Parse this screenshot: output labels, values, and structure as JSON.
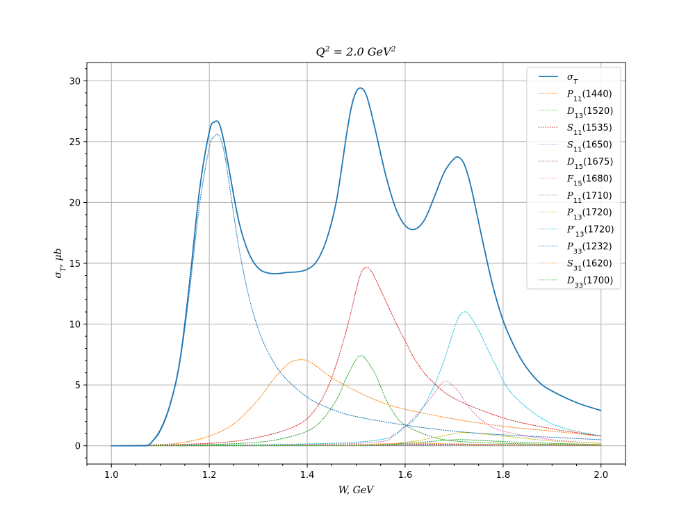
{
  "chart_data": {
    "type": "line",
    "title": "Q² = 2.0 GeV²",
    "xlabel": "W, GeV",
    "ylabel": "σ_T, μb",
    "xlim": [
      0.95,
      2.05
    ],
    "ylim": [
      -1.5,
      31.5
    ],
    "xticks": [
      "1.0",
      "1.2",
      "1.4",
      "1.6",
      "1.8",
      "2.0"
    ],
    "yticks": [
      "0",
      "5",
      "10",
      "15",
      "20",
      "25",
      "30"
    ],
    "grid": true,
    "legend_position": "top-right",
    "series": [
      {
        "name": "σ_T",
        "label_main": "σ",
        "label_sub": "T",
        "color": "#1f77b4",
        "style": "solid",
        "x": [
          1.0,
          1.02,
          1.04,
          1.06,
          1.07,
          1.08,
          1.1,
          1.12,
          1.14,
          1.16,
          1.18,
          1.2,
          1.21,
          1.22,
          1.23,
          1.24,
          1.26,
          1.28,
          1.3,
          1.32,
          1.34,
          1.36,
          1.38,
          1.4,
          1.42,
          1.44,
          1.46,
          1.48,
          1.49,
          1.5,
          1.51,
          1.52,
          1.53,
          1.54,
          1.56,
          1.58,
          1.6,
          1.62,
          1.64,
          1.66,
          1.68,
          1.7,
          1.71,
          1.72,
          1.73,
          1.74,
          1.76,
          1.78,
          1.8,
          1.82,
          1.84,
          1.86,
          1.88,
          1.9,
          1.93,
          1.96,
          2.0
        ],
        "y": [
          0,
          0,
          0,
          0,
          0,
          0.2,
          1.3,
          3.4,
          7,
          13.5,
          21,
          25.8,
          26.6,
          26.5,
          25,
          22.8,
          18.5,
          15.9,
          14.6,
          14.2,
          14.15,
          14.25,
          14.3,
          14.5,
          15.2,
          17,
          20.2,
          25.5,
          27.8,
          29.1,
          29.4,
          28.9,
          27.5,
          25.8,
          22.3,
          19.6,
          18.1,
          17.8,
          18.6,
          20.5,
          22.5,
          23.6,
          23.7,
          23.2,
          22,
          20.3,
          16.5,
          13,
          10.3,
          8.4,
          6.9,
          5.8,
          5,
          4.5,
          3.9,
          3.4,
          2.9
        ]
      },
      {
        "name": "P11(1440)",
        "label_main": "P",
        "label_sub": "11",
        "label_tail": "(1440)",
        "color": "#ff7f0e",
        "style": "dotted",
        "x": [
          1.0,
          1.1,
          1.15,
          1.2,
          1.25,
          1.3,
          1.33,
          1.36,
          1.38,
          1.4,
          1.42,
          1.45,
          1.5,
          1.55,
          1.6,
          1.7,
          1.8,
          1.9,
          2.0
        ],
        "y": [
          0,
          0.1,
          0.3,
          0.8,
          1.8,
          3.8,
          5.4,
          6.7,
          7.05,
          7,
          6.5,
          5.6,
          4.5,
          3.6,
          3,
          2.2,
          1.6,
          1.2,
          0.8
        ]
      },
      {
        "name": "D13(1520)",
        "label_main": "D",
        "label_sub": "13",
        "label_tail": "(1520)",
        "color": "#2ca02c",
        "style": "dotted",
        "x": [
          1.0,
          1.2,
          1.3,
          1.35,
          1.4,
          1.43,
          1.46,
          1.48,
          1.5,
          1.51,
          1.52,
          1.54,
          1.56,
          1.58,
          1.6,
          1.65,
          1.7,
          1.8,
          2.0
        ],
        "y": [
          0,
          0.1,
          0.3,
          0.6,
          1.2,
          2.1,
          3.8,
          5.6,
          7.1,
          7.4,
          7.1,
          5.8,
          3.9,
          2.5,
          1.7,
          0.8,
          0.4,
          0.2,
          0.05
        ]
      },
      {
        "name": "S11(1535)",
        "label_main": "S",
        "label_sub": "11",
        "label_tail": "(1535)",
        "color": "#d62728",
        "style": "dotted",
        "x": [
          1.0,
          1.2,
          1.3,
          1.38,
          1.42,
          1.45,
          1.48,
          1.5,
          1.51,
          1.52,
          1.53,
          1.55,
          1.58,
          1.6,
          1.62,
          1.65,
          1.7,
          1.8,
          1.9,
          2.0
        ],
        "y": [
          0,
          0.2,
          0.7,
          1.7,
          3.2,
          5.6,
          9.5,
          12.8,
          14.2,
          14.65,
          14.4,
          12.8,
          10.2,
          8.6,
          7.1,
          5.5,
          3.9,
          2.3,
          1.4,
          0.8
        ]
      },
      {
        "name": "S11(1650)",
        "label_main": "S",
        "label_sub": "11",
        "label_tail": "(1650)",
        "color": "#9467bd",
        "style": "dotted",
        "x": [
          1.0,
          1.5,
          1.6,
          1.65,
          1.7,
          1.8,
          2.0
        ],
        "y": [
          0,
          0.05,
          0.1,
          0.15,
          0.15,
          0.1,
          0.05
        ]
      },
      {
        "name": "D15(1675)",
        "label_main": "D",
        "label_sub": "15",
        "label_tail": "(1675)",
        "color": "#8c564b",
        "style": "dotted",
        "x": [
          1.0,
          1.5,
          1.6,
          1.68,
          1.75,
          1.85,
          2.0
        ],
        "y": [
          0,
          0.02,
          0.05,
          0.1,
          0.08,
          0.05,
          0.02
        ]
      },
      {
        "name": "F15(1680)",
        "label_main": "F",
        "label_sub": "15",
        "label_tail": "(1680)",
        "color": "#e377c2",
        "style": "dotted",
        "x": [
          1.0,
          1.5,
          1.58,
          1.62,
          1.65,
          1.67,
          1.68,
          1.69,
          1.71,
          1.73,
          1.76,
          1.8,
          1.9,
          2.0
        ],
        "y": [
          0,
          0.2,
          1,
          2.4,
          3.8,
          4.9,
          5.3,
          5.2,
          4.4,
          3.2,
          2,
          1.2,
          0.5,
          0.2
        ]
      },
      {
        "name": "P11(1710)",
        "label_main": "P",
        "label_sub": "11",
        "label_tail": "(1710)",
        "color": "#7f7f7f",
        "style": "dotted",
        "x": [
          1.0,
          1.6,
          1.7,
          1.72,
          1.8,
          2.0
        ],
        "y": [
          0,
          0.02,
          0.05,
          0.05,
          0.04,
          0.02
        ]
      },
      {
        "name": "P13(1720)",
        "label_main": "P",
        "label_sub": "13",
        "label_tail": "(1720)",
        "color": "#bcbd22",
        "style": "dotted",
        "x": [
          1.0,
          1.5,
          1.6,
          1.65,
          1.7,
          1.72,
          1.75,
          1.8,
          1.9,
          2.0
        ],
        "y": [
          0,
          0.05,
          0.3,
          0.6,
          1,
          1.1,
          1,
          0.8,
          0.4,
          0.2
        ]
      },
      {
        "name": "P'13(1720)",
        "label_main": "P′",
        "label_sub": "13",
        "label_tail": "(1720)",
        "color": "#17becf",
        "style": "dotted",
        "x": [
          1.0,
          1.5,
          1.6,
          1.64,
          1.67,
          1.69,
          1.7,
          1.71,
          1.72,
          1.73,
          1.75,
          1.78,
          1.82,
          1.9,
          2.0
        ],
        "y": [
          0,
          0.3,
          1.6,
          3.4,
          6,
          8.3,
          9.6,
          10.6,
          11,
          10.8,
          9.5,
          7,
          4.2,
          1.8,
          0.8
        ]
      },
      {
        "name": "P33(1232)",
        "label_main": "P",
        "label_sub": "33",
        "label_tail": "(1232)",
        "color": "#1f77b4",
        "style": "dotted",
        "x": [
          1.0,
          1.06,
          1.07,
          1.08,
          1.1,
          1.12,
          1.14,
          1.16,
          1.18,
          1.2,
          1.21,
          1.22,
          1.23,
          1.24,
          1.26,
          1.28,
          1.3,
          1.32,
          1.35,
          1.4,
          1.45,
          1.5,
          1.6,
          1.7,
          1.8,
          1.9,
          2.0
        ],
        "y": [
          0,
          0,
          0,
          0.2,
          1.2,
          3.3,
          6.8,
          12.8,
          19.8,
          24.5,
          25.4,
          25.5,
          24.2,
          21.7,
          16.4,
          12.4,
          9.6,
          7.7,
          5.8,
          4,
          3,
          2.4,
          1.7,
          1.2,
          0.9,
          0.7,
          0.5
        ]
      },
      {
        "name": "S31(1620)",
        "label_main": "S",
        "label_sub": "31",
        "label_tail": "(1620)",
        "color": "#ff7f0e",
        "style": "dotted",
        "x": [
          1.0,
          1.4,
          1.5,
          1.55,
          1.6,
          1.62,
          1.65,
          1.7,
          1.8,
          2.0
        ],
        "y": [
          0,
          0.05,
          0.1,
          0.15,
          0.2,
          0.2,
          0.2,
          0.15,
          0.1,
          0.05
        ]
      },
      {
        "name": "D33(1700)",
        "label_main": "D",
        "label_sub": "33",
        "label_tail": "(1700)",
        "color": "#2ca02c",
        "style": "dotted",
        "x": [
          1.0,
          1.5,
          1.6,
          1.65,
          1.7,
          1.72,
          1.75,
          1.8,
          1.9,
          2.0
        ],
        "y": [
          0,
          0.05,
          0.2,
          0.35,
          0.5,
          0.5,
          0.45,
          0.35,
          0.2,
          0.1
        ]
      }
    ]
  }
}
